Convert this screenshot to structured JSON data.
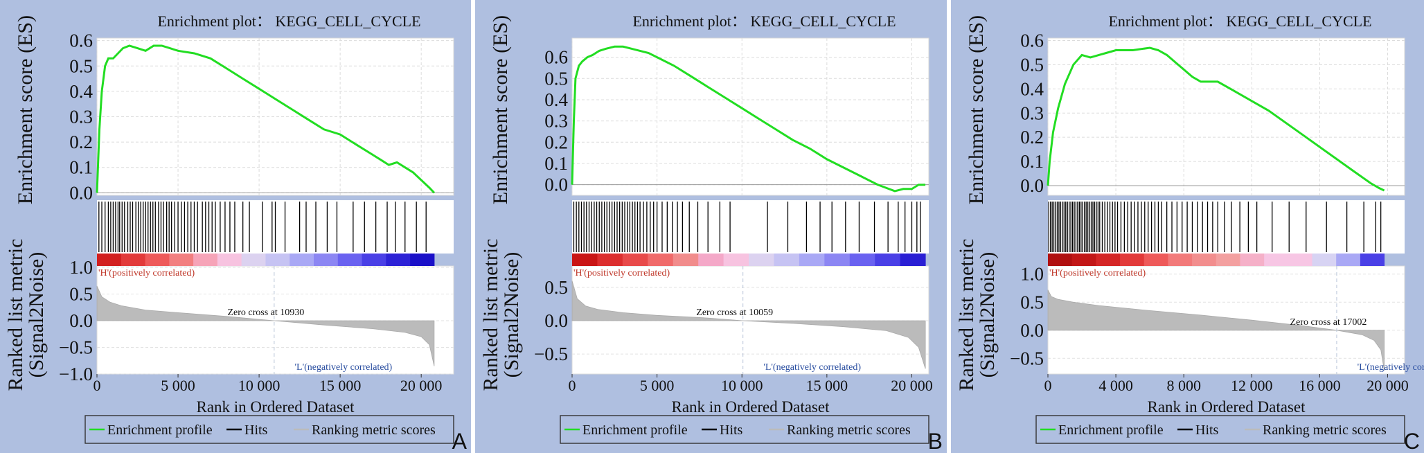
{
  "legend": {
    "items": [
      "Enrichment profile",
      "Hits",
      "Ranking metric scores"
    ],
    "colors": {
      "profile": "#22dd22",
      "hits": "#000000",
      "metric": "#bbbbbb"
    }
  },
  "xlabel": "Rank in Ordered Dataset",
  "es_ylabel": "Enrichment score (ES)",
  "rank_ylabel": [
    "Ranked list metric",
    "(Signal2Noise)"
  ],
  "chart_data": [
    {
      "type": "line",
      "panel_label": "A",
      "title": "Enrichment plot： KEGG_CELL_CYCLE",
      "n_genes": 20800,
      "xlim": [
        0,
        22000
      ],
      "xticks": [
        0,
        5000,
        10000,
        15000,
        20000
      ],
      "xtick_labels": [
        "0",
        "5 000",
        "10 000",
        "15 000",
        "20 000"
      ],
      "es_ylim": [
        -0.01,
        0.61
      ],
      "es_yticks": [
        0.0,
        0.1,
        0.2,
        0.3,
        0.4,
        0.5,
        0.6
      ],
      "es_ytick_labels": [
        "0.0",
        "0.1",
        "0.2",
        "0.3",
        "0.4",
        "0.5",
        "0.6"
      ],
      "es_curve": {
        "x": [
          0,
          150,
          300,
          500,
          700,
          1000,
          1300,
          1600,
          2000,
          2500,
          3000,
          3500,
          4000,
          4500,
          5000,
          6000,
          7000,
          8000,
          9000,
          10000,
          11000,
          12000,
          13000,
          14000,
          15000,
          16000,
          17000,
          17500,
          18000,
          18500,
          19000,
          19500,
          20000,
          20500,
          20800
        ],
        "y": [
          0.0,
          0.25,
          0.4,
          0.5,
          0.53,
          0.53,
          0.55,
          0.57,
          0.58,
          0.57,
          0.56,
          0.58,
          0.58,
          0.57,
          0.56,
          0.55,
          0.53,
          0.49,
          0.45,
          0.41,
          0.37,
          0.33,
          0.29,
          0.25,
          0.23,
          0.19,
          0.15,
          0.13,
          0.11,
          0.12,
          0.1,
          0.08,
          0.05,
          0.02,
          0.0
        ]
      },
      "hits": [
        120,
        300,
        500,
        700,
        850,
        1000,
        1150,
        1300,
        1400,
        1550,
        1700,
        1900,
        2050,
        2200,
        2400,
        2550,
        2700,
        2850,
        3000,
        3150,
        3300,
        3450,
        3600,
        3800,
        3950,
        4100,
        4300,
        4450,
        4600,
        4800,
        5000,
        5200,
        5400,
        5600,
        5800,
        6000,
        6200,
        6500,
        6700,
        6900,
        7100,
        7300,
        7600,
        7900,
        8200,
        8500,
        9000,
        9400,
        10200,
        10800,
        11000,
        11600,
        12500,
        12900,
        13500,
        14200,
        14800,
        15800,
        16500,
        17200,
        17900,
        18400,
        19000,
        19700,
        20300
      ],
      "heatmap_colors": [
        "#d21f1f",
        "#e23a3a",
        "#ee5a5a",
        "#f27f80",
        "#f6a4b8",
        "#f7c3e0",
        "#dcd2f0",
        "#c6c3f3",
        "#a9a8f5",
        "#8c86f3",
        "#6a62f0",
        "#4a40e6",
        "#2d22d6",
        "#1a10c8"
      ],
      "pos_label": "'H'(positively correlated)",
      "neg_label": "'L'(negatively correlated)",
      "zero_cross_label": "Zero cross at 10930",
      "zero_cross": 10930,
      "rank_ylim": [
        -1.0,
        1.0
      ],
      "rank_yticks": [
        -1.0,
        -0.5,
        0.0,
        0.5,
        1.0
      ],
      "rank_ytick_labels": [
        "−1.0",
        "−0.5",
        "0.0",
        "0.5",
        "1.0"
      ],
      "metric_curve": {
        "x": [
          0,
          300,
          800,
          1500,
          3000,
          5000,
          8000,
          10930,
          14000,
          17000,
          19000,
          20000,
          20500,
          20800
        ],
        "y": [
          0.65,
          0.45,
          0.35,
          0.28,
          0.2,
          0.15,
          0.08,
          0.0,
          -0.08,
          -0.15,
          -0.22,
          -0.3,
          -0.45,
          -0.85
        ]
      }
    },
    {
      "type": "line",
      "panel_label": "B",
      "title": "Enrichment plot： KEGG_CELL_CYCLE",
      "n_genes": 20800,
      "xlim": [
        0,
        21000
      ],
      "xticks": [
        0,
        5000,
        10000,
        15000,
        20000
      ],
      "xtick_labels": [
        "0",
        "5 000",
        "10 000",
        "15 000",
        "20 000"
      ],
      "es_ylim": [
        -0.05,
        0.69
      ],
      "es_yticks": [
        0.0,
        0.1,
        0.2,
        0.3,
        0.4,
        0.5,
        0.6
      ],
      "es_ytick_labels": [
        "0.0",
        "0.1",
        "0.2",
        "0.3",
        "0.4",
        "0.5",
        "0.6"
      ],
      "es_curve": {
        "x": [
          0,
          100,
          200,
          400,
          600,
          900,
          1200,
          1600,
          2000,
          2500,
          3000,
          3500,
          4000,
          4500,
          5000,
          6000,
          7000,
          8000,
          9000,
          10000,
          11000,
          12000,
          13000,
          14000,
          15000,
          16000,
          17000,
          18000,
          19000,
          19500,
          20000,
          20400,
          20800
        ],
        "y": [
          0.0,
          0.3,
          0.5,
          0.56,
          0.58,
          0.6,
          0.61,
          0.63,
          0.64,
          0.65,
          0.65,
          0.64,
          0.63,
          0.62,
          0.6,
          0.56,
          0.51,
          0.46,
          0.41,
          0.36,
          0.31,
          0.26,
          0.21,
          0.17,
          0.12,
          0.08,
          0.04,
          0.0,
          -0.03,
          -0.02,
          -0.02,
          0.0,
          0.0
        ]
      },
      "hits": [
        100,
        250,
        400,
        550,
        700,
        850,
        1000,
        1150,
        1300,
        1450,
        1600,
        1750,
        1900,
        2050,
        2200,
        2350,
        2500,
        2650,
        2800,
        2950,
        3100,
        3250,
        3400,
        3550,
        3700,
        3850,
        4000,
        4200,
        4400,
        4600,
        4800,
        5000,
        5300,
        5600,
        5900,
        6200,
        6500,
        6900,
        7400,
        8000,
        8700,
        9300,
        11500,
        12700,
        13800,
        14600,
        15300,
        16100,
        16900,
        17800,
        18600,
        19200,
        19600,
        20000,
        20300,
        20500
      ],
      "heatmap_colors": [
        "#c91515",
        "#dc2e2e",
        "#e84a4a",
        "#f06a6a",
        "#f18c8c",
        "#f4a8c8",
        "#f7c3e0",
        "#dcd2f0",
        "#c6c3f3",
        "#a9a8f5",
        "#8c86f3",
        "#6a62f0",
        "#4a40e6",
        "#2a1fd4"
      ],
      "pos_label": "'H'(positively correlated)",
      "neg_label": "'L'(negatively correlated)",
      "zero_cross_label": "Zero cross at 10059",
      "zero_cross": 10059,
      "rank_ylim": [
        -0.8,
        0.8
      ],
      "rank_yticks": [
        -0.5,
        0.0,
        0.5
      ],
      "rank_ytick_labels": [
        "−0.5",
        "0.0",
        "0.5"
      ],
      "metric_curve": {
        "x": [
          0,
          300,
          800,
          1500,
          3000,
          5000,
          8000,
          10059,
          13000,
          16000,
          18500,
          19800,
          20400,
          20800
        ],
        "y": [
          0.6,
          0.33,
          0.22,
          0.17,
          0.12,
          0.08,
          0.04,
          0.0,
          -0.04,
          -0.09,
          -0.15,
          -0.25,
          -0.4,
          -0.72
        ]
      }
    },
    {
      "type": "line",
      "panel_label": "C",
      "title": "Enrichment plot： KEGG_CELL_CYCLE",
      "n_genes": 19800,
      "xlim": [
        0,
        21000
      ],
      "xticks": [
        0,
        4000,
        8000,
        12000,
        16000,
        20000
      ],
      "xtick_labels": [
        "0",
        "4 000",
        "8 000",
        "12 000",
        "16 000",
        "20 000"
      ],
      "es_ylim": [
        -0.04,
        0.61
      ],
      "es_yticks": [
        0.0,
        0.1,
        0.2,
        0.3,
        0.4,
        0.5,
        0.6
      ],
      "es_ytick_labels": [
        "0.0",
        "0.1",
        "0.2",
        "0.3",
        "0.4",
        "0.5",
        "0.6"
      ],
      "es_curve": {
        "x": [
          0,
          100,
          300,
          600,
          1000,
          1500,
          2000,
          2500,
          3000,
          3500,
          4000,
          5000,
          6000,
          6500,
          7000,
          7500,
          8000,
          8500,
          9000,
          10000,
          11000,
          12000,
          13000,
          14000,
          15000,
          16000,
          17000,
          18000,
          19000,
          19500,
          19800
        ],
        "y": [
          0.0,
          0.1,
          0.22,
          0.32,
          0.42,
          0.5,
          0.54,
          0.53,
          0.54,
          0.55,
          0.56,
          0.56,
          0.57,
          0.56,
          0.54,
          0.51,
          0.48,
          0.45,
          0.43,
          0.43,
          0.39,
          0.35,
          0.31,
          0.26,
          0.21,
          0.16,
          0.11,
          0.06,
          0.01,
          -0.01,
          -0.02
        ]
      },
      "hits": [
        50,
        150,
        250,
        350,
        450,
        550,
        650,
        750,
        850,
        950,
        1050,
        1150,
        1250,
        1350,
        1450,
        1550,
        1650,
        1750,
        1850,
        1950,
        2050,
        2150,
        2250,
        2350,
        2450,
        2550,
        2650,
        2750,
        2850,
        2950,
        3050,
        3200,
        3350,
        3500,
        3650,
        3800,
        3950,
        4100,
        4300,
        4500,
        4700,
        4900,
        5100,
        5300,
        5500,
        5700,
        5900,
        6100,
        6300,
        6500,
        6700,
        7000,
        7300,
        7600,
        7900,
        8200,
        8500,
        8800,
        9100,
        9400,
        9700,
        10000,
        10400,
        10800,
        11300,
        11800,
        12300,
        13200,
        14200,
        15200,
        16400,
        17600,
        18600,
        19300,
        19600
      ],
      "heatmap_colors": [
        "#b01010",
        "#c21717",
        "#d42626",
        "#e23a3a",
        "#ee5a5a",
        "#f27a7a",
        "#f28e8e",
        "#f3a0a0",
        "#f5b0c8",
        "#f7c6e4",
        "#f7c6e4",
        "#d7d3f3",
        "#a9a8f5",
        "#4a40e6"
      ],
      "pos_label": "'H'(positively correlated)",
      "neg_label": "'L'(negatively correlated)",
      "zero_cross_label": "Zero cross at 17002",
      "zero_cross": 17002,
      "rank_ylim": [
        -0.78,
        1.12
      ],
      "rank_yticks": [
        -0.5,
        0.0,
        0.5,
        1.0
      ],
      "rank_ytick_labels": [
        "−0.5",
        "0.0",
        "0.5",
        "1.0"
      ],
      "metric_curve": {
        "x": [
          0,
          200,
          600,
          1500,
          3000,
          6000,
          9000,
          12000,
          15000,
          17002,
          18500,
          19200,
          19600,
          19800
        ],
        "y": [
          0.72,
          0.6,
          0.55,
          0.5,
          0.44,
          0.35,
          0.27,
          0.18,
          0.08,
          0.0,
          -0.08,
          -0.18,
          -0.35,
          -0.72
        ]
      }
    }
  ]
}
